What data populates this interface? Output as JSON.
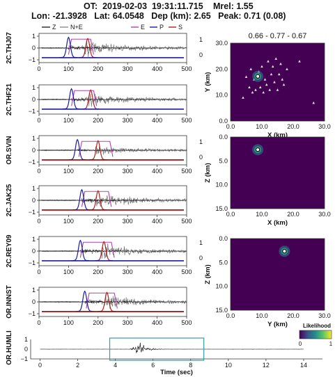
{
  "header": {
    "ot": "OT:  2019-02-03  19:31:11.715",
    "mrel": "Mrel: 1.55",
    "coords": "Lon: -21.3928   Lat: 64.0548   Dep (km): 2.65   Peak: 0.71 (0.08)"
  },
  "colors": {
    "z": "#000000",
    "ne": "#777777",
    "e": "#b040b0",
    "p": "#1a1aa0",
    "s": "#b02020",
    "map_bg": "#440154",
    "window_box": "#3a9aa8"
  },
  "legends": {
    "left": [
      "Z",
      "N+E"
    ],
    "right": [
      "E",
      "P",
      "S"
    ]
  },
  "panel_yticks": [
    "1",
    "0",
    "−1"
  ],
  "right_axis_ticks": [
    "1",
    "0"
  ],
  "x_ticks": [
    "0",
    "100",
    "200",
    "300",
    "400",
    "500"
  ],
  "stations": [
    "2C.THJ07",
    "2C.THF21",
    "OR.SVIN",
    "2C.JAK25",
    "2C.REY09",
    "OR.INNST"
  ],
  "bottom_station": "OR.HUMLI",
  "bottom_xticks": [
    "0",
    "2",
    "4",
    "6",
    "8",
    "10",
    "12",
    "14"
  ],
  "bottom_xlabel": "Time (sec)",
  "map_title": "0.66 - 0.77 - 0.67",
  "map1": {
    "xlabel": "X (km)",
    "ylabel": "Y (km)",
    "xticks": [
      "0.0",
      "10.0",
      "20.0",
      "30.0"
    ],
    "yticks": [
      "30.0",
      "20.0",
      "10.0",
      "0.0"
    ]
  },
  "map2": {
    "xlabel": "X (km)",
    "ylabel": "Z (km)",
    "xticks": [
      "0.0",
      "10.0",
      "20.0",
      "30.0"
    ],
    "yticks": [
      "0.0",
      "5.0",
      "10.0",
      "15.0"
    ]
  },
  "map3": {
    "xlabel": "Y (km)",
    "ylabel": "Z (km)",
    "xticks": [
      "0.0",
      "10.0",
      "20.0",
      "30.0"
    ],
    "yticks": [
      "0.0",
      "5.0",
      "10.0",
      "15.0"
    ]
  },
  "colorbar": {
    "label": "Likelihood",
    "min": "0",
    "max": "1"
  },
  "chart_data": {
    "type": "line",
    "title": "",
    "traces": [
      {
        "station": "2C.THJ07",
        "p_pick": 100,
        "s_pick": 165,
        "e_start": 110,
        "e_end": 175,
        "ne_amp": 0.9
      },
      {
        "station": "2C.THF21",
        "p_pick": 110,
        "s_pick": 175,
        "e_start": 120,
        "e_end": 185,
        "ne_amp": 0.75
      },
      {
        "station": "OR.SVIN",
        "p_pick": 130,
        "s_pick": 200,
        "e_start": 145,
        "e_end": 240,
        "ne_amp": 0.4
      },
      {
        "station": "2C.JAK25",
        "p_pick": 145,
        "s_pick": 200,
        "e_start": 155,
        "e_end": 235,
        "ne_amp": 0.95
      },
      {
        "station": "2C.REY09",
        "p_pick": 140,
        "s_pick": 220,
        "e_start": 150,
        "e_end": 245,
        "ne_amp": 0.8
      },
      {
        "station": "OR.INNST",
        "p_pick": 155,
        "s_pick": 230,
        "e_start": 170,
        "e_end": 255,
        "ne_amp": 0.75
      }
    ],
    "xlim": [
      0,
      500
    ],
    "ylim": [
      -1,
      1
    ],
    "epicenter_km": {
      "x": 8.7,
      "y": 17.2,
      "z": 2.65
    },
    "stations_xy_km": [
      [
        4,
        9
      ],
      [
        5,
        17
      ],
      [
        6,
        13
      ],
      [
        6.5,
        20
      ],
      [
        7,
        11
      ],
      [
        7.5,
        16
      ],
      [
        8,
        12
      ],
      [
        9,
        19
      ],
      [
        9.5,
        13
      ],
      [
        10,
        21
      ],
      [
        10.5,
        11
      ],
      [
        11,
        16
      ],
      [
        11.5,
        14
      ],
      [
        12,
        23
      ],
      [
        12.5,
        12
      ],
      [
        13,
        18
      ],
      [
        13.5,
        21
      ],
      [
        14,
        15
      ],
      [
        14.5,
        24
      ],
      [
        15,
        12
      ],
      [
        15.5,
        18
      ],
      [
        16,
        22
      ],
      [
        16.5,
        16
      ],
      [
        17,
        14
      ],
      [
        18,
        20
      ],
      [
        22,
        23
      ],
      [
        26.5,
        7
      ]
    ],
    "bottom_trace": {
      "station": "OR.HUMLI",
      "xlim": [
        -0.5,
        15
      ],
      "window": [
        3.7,
        8.7
      ],
      "burst_center": 5.2
    }
  }
}
